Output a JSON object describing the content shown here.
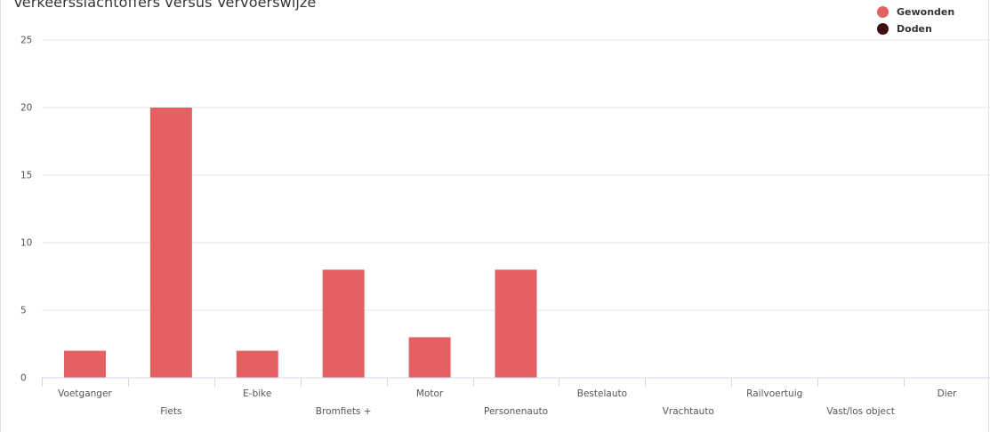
{
  "chart_data": {
    "type": "bar",
    "title": "Verkeersslachtoffers versus Vervoerswijze",
    "categories": [
      "Voetganger",
      "Fiets",
      "E-bike",
      "Bromfiets +",
      "Motor",
      "Personenauto",
      "Bestelauto",
      "Vrachtauto",
      "Railvoertuig",
      "Vast/los object",
      "Dier"
    ],
    "series": [
      {
        "name": "Gewonden",
        "color": "#e36163",
        "values": [
          2,
          20,
          2,
          8,
          3,
          8,
          0,
          0,
          0,
          0,
          0
        ]
      },
      {
        "name": "Doden",
        "color": "#3d0f12",
        "values": [
          0,
          0,
          0,
          0,
          0,
          0,
          0,
          0,
          0,
          0,
          0
        ]
      }
    ],
    "yticks": [
      0,
      5,
      10,
      15,
      20,
      25
    ],
    "ylim": [
      0,
      25
    ],
    "grid": true,
    "legend_position": "top-right"
  }
}
